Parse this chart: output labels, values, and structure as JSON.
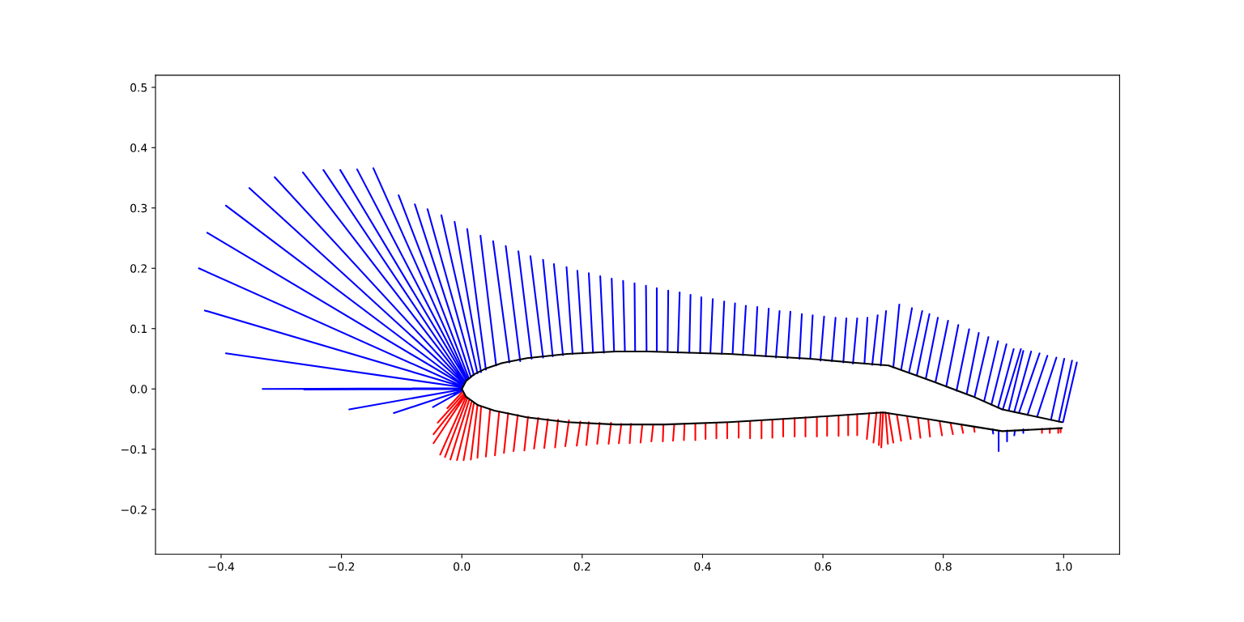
{
  "chart_data": {
    "type": "line",
    "xlim": [
      -0.509,
      1.093
    ],
    "ylim": [
      -0.274,
      0.52
    ],
    "xticks": [
      {
        "value": -0.4,
        "label": "−0.4"
      },
      {
        "value": -0.2,
        "label": "−0.2"
      },
      {
        "value": 0.0,
        "label": "0.0"
      },
      {
        "value": 0.2,
        "label": "0.2"
      },
      {
        "value": 0.4,
        "label": "0.4"
      },
      {
        "value": 0.6,
        "label": "0.6"
      },
      {
        "value": 0.8,
        "label": "0.8"
      },
      {
        "value": 1.0,
        "label": "1.0"
      }
    ],
    "yticks": [
      {
        "value": -0.2,
        "label": "−0.2"
      },
      {
        "value": -0.1,
        "label": "−0.1"
      },
      {
        "value": 0.0,
        "label": "0.0"
      },
      {
        "value": 0.1,
        "label": "0.1"
      },
      {
        "value": 0.2,
        "label": "0.2"
      },
      {
        "value": 0.3,
        "label": "0.3"
      },
      {
        "value": 0.4,
        "label": "0.4"
      },
      {
        "value": 0.5,
        "label": "0.5"
      }
    ],
    "grid": false,
    "series": [
      {
        "color": "#0000ff",
        "x": [
          -0.001,
          -0.048,
          null,
          -0.001,
          -0.113,
          null,
          -0.001,
          -0.187,
          null,
          -0.001,
          -0.262,
          null,
          -0.001,
          -0.331,
          null,
          0.0,
          -0.392,
          null,
          0.0,
          -0.427,
          null,
          0.0,
          -0.437,
          null,
          0.001,
          -0.423,
          null,
          0.001,
          -0.392,
          null,
          0.003,
          -0.353,
          null,
          0.003,
          -0.311,
          null,
          0.004,
          -0.264,
          null,
          0.005,
          -0.23,
          null,
          0.007,
          -0.202,
          null,
          0.008,
          -0.174,
          null,
          0.009,
          -0.147,
          null,
          0.011,
          -0.105,
          null,
          0.015,
          -0.078,
          null,
          0.02,
          -0.057,
          null,
          0.026,
          -0.034,
          null,
          0.032,
          -0.012,
          null,
          0.04,
          0.009,
          null,
          0.057,
          0.031,
          null,
          0.079,
          0.052,
          null,
          0.097,
          0.073,
          null,
          0.116,
          0.094,
          null,
          0.135,
          0.114,
          null,
          0.151,
          0.135,
          null,
          0.168,
          0.153,
          null,
          0.184,
          0.174,
          null,
          0.201,
          0.192,
          null,
          0.218,
          0.211,
          null,
          0.236,
          0.23,
          null,
          0.253,
          0.249,
          null,
          0.271,
          0.268,
          null,
          0.288,
          0.287,
          null,
          0.307,
          0.306,
          null,
          0.324,
          0.324,
          null,
          0.342,
          0.343,
          null,
          0.359,
          0.362,
          null,
          0.378,
          0.38,
          null,
          0.396,
          0.398,
          null,
          0.413,
          0.417,
          null,
          0.432,
          0.436,
          null,
          0.45,
          0.454,
          null,
          0.467,
          0.472,
          null,
          0.487,
          0.491,
          null,
          0.505,
          0.51,
          null,
          0.522,
          0.528,
          null,
          0.541,
          0.546,
          null,
          0.561,
          0.565,
          null,
          0.579,
          0.583,
          null,
          0.596,
          0.602,
          null,
          0.615,
          0.621,
          null,
          0.634,
          0.639,
          null,
          0.65,
          0.657,
          null,
          0.669,
          0.674,
          null,
          0.682,
          0.691,
          null,
          0.696,
          0.705,
          null,
          0.717,
          0.727,
          null,
          0.73,
          0.748,
          null,
          0.743,
          0.765,
          null,
          0.756,
          0.777,
          null,
          0.771,
          0.791,
          null,
          0.787,
          0.808,
          null,
          0.805,
          0.825,
          null,
          0.822,
          0.843,
          null,
          0.839,
          0.859,
          null,
          0.852,
          0.875,
          null,
          0.868,
          0.891,
          null,
          0.88,
          0.905,
          null,
          0.891,
          0.917,
          null,
          0.899,
          0.929,
          null,
          0.909,
          0.933,
          null,
          0.918,
          0.946,
          null,
          0.926,
          0.96,
          null,
          0.94,
          0.973,
          null,
          0.956,
          0.988,
          null,
          0.979,
          1.001,
          null,
          0.992,
          1.014,
          null,
          0.999,
          1.022,
          null,
          0.882,
          0.883,
          null,
          0.892,
          0.892,
          null,
          0.906,
          0.906,
          null,
          0.919,
          0.918,
          null,
          0.933,
          0.933
        ],
        "values": [
          -0.004,
          -0.03,
          null,
          -0.003,
          -0.04,
          null,
          -0.001,
          -0.034,
          null,
          0.0,
          -0.001,
          null,
          0.001,
          0.0,
          null,
          0.003,
          0.059,
          null,
          0.004,
          0.13,
          null,
          0.005,
          0.2,
          null,
          0.007,
          0.259,
          null,
          0.008,
          0.304,
          null,
          0.009,
          0.333,
          null,
          0.011,
          0.351,
          null,
          0.012,
          0.359,
          null,
          0.013,
          0.363,
          null,
          0.015,
          0.363,
          null,
          0.016,
          0.364,
          null,
          0.017,
          0.366,
          null,
          0.019,
          0.321,
          null,
          0.02,
          0.306,
          null,
          0.023,
          0.298,
          null,
          0.026,
          0.288,
          null,
          0.028,
          0.277,
          null,
          0.032,
          0.265,
          null,
          0.039,
          0.254,
          null,
          0.044,
          0.245,
          null,
          0.046,
          0.237,
          null,
          0.05,
          0.228,
          null,
          0.052,
          0.22,
          null,
          0.054,
          0.214,
          null,
          0.056,
          0.207,
          null,
          0.058,
          0.202,
          null,
          0.059,
          0.196,
          null,
          0.06,
          0.192,
          null,
          0.06,
          0.187,
          null,
          0.062,
          0.183,
          null,
          0.062,
          0.179,
          null,
          0.062,
          0.175,
          null,
          0.062,
          0.171,
          null,
          0.062,
          0.167,
          null,
          0.062,
          0.163,
          null,
          0.06,
          0.16,
          null,
          0.06,
          0.156,
          null,
          0.059,
          0.152,
          null,
          0.059,
          0.149,
          null,
          0.058,
          0.145,
          null,
          0.058,
          0.142,
          null,
          0.056,
          0.138,
          null,
          0.055,
          0.136,
          null,
          0.054,
          0.133,
          null,
          0.052,
          0.129,
          null,
          0.051,
          0.128,
          null,
          0.05,
          0.124,
          null,
          0.05,
          0.122,
          null,
          0.047,
          0.12,
          null,
          0.046,
          0.118,
          null,
          0.044,
          0.117,
          null,
          0.042,
          0.117,
          null,
          0.042,
          0.118,
          null,
          0.04,
          0.122,
          null,
          0.039,
          0.129,
          null,
          0.036,
          0.14,
          null,
          0.032,
          0.134,
          null,
          0.027,
          0.129,
          null,
          0.022,
          0.124,
          null,
          0.017,
          0.118,
          null,
          0.011,
          0.113,
          null,
          0.004,
          0.106,
          null,
          -0.003,
          0.099,
          null,
          -0.008,
          0.093,
          null,
          -0.013,
          0.086,
          null,
          -0.02,
          0.079,
          null,
          -0.026,
          0.074,
          null,
          -0.031,
          0.066,
          null,
          -0.034,
          0.066,
          null,
          -0.035,
          0.063,
          null,
          -0.038,
          0.062,
          null,
          -0.039,
          0.059,
          null,
          -0.043,
          0.055,
          null,
          -0.046,
          0.052,
          null,
          -0.051,
          0.05,
          null,
          -0.054,
          0.047,
          null,
          -0.055,
          0.044,
          null,
          -0.067,
          -0.074,
          null,
          -0.07,
          -0.103,
          null,
          -0.069,
          -0.087,
          null,
          -0.069,
          -0.077,
          null,
          -0.067,
          -0.073
        ]
      },
      {
        "color": "#ff0000",
        "x": [
          0.001,
          -0.024,
          null,
          0.003,
          -0.04,
          null,
          0.004,
          -0.047,
          null,
          0.005,
          -0.047,
          null,
          0.007,
          -0.036,
          null,
          0.009,
          -0.028,
          null,
          0.012,
          -0.019,
          null,
          0.016,
          -0.008,
          null,
          0.02,
          0.003,
          null,
          0.026,
          0.015,
          null,
          0.032,
          0.026,
          null,
          0.047,
          0.04,
          null,
          0.062,
          0.055,
          null,
          0.077,
          0.07,
          null,
          0.093,
          0.086,
          null,
          0.11,
          0.104,
          null,
          0.127,
          0.12,
          null,
          0.143,
          0.137,
          null,
          0.16,
          0.155,
          null,
          0.178,
          0.172,
          null,
          0.197,
          0.191,
          null,
          0.211,
          0.207,
          null,
          0.229,
          0.225,
          null,
          0.248,
          0.244,
          null,
          0.265,
          0.261,
          null,
          0.281,
          0.279,
          null,
          0.3,
          0.297,
          null,
          0.318,
          0.315,
          null,
          0.335,
          0.334,
          null,
          0.353,
          0.351,
          null,
          0.37,
          0.369,
          null,
          0.388,
          0.388,
          null,
          0.405,
          0.405,
          null,
          0.423,
          0.423,
          null,
          0.441,
          0.441,
          null,
          0.46,
          0.46,
          null,
          0.479,
          0.479,
          null,
          0.498,
          0.498,
          null,
          0.516,
          0.516,
          null,
          0.534,
          0.534,
          null,
          0.553,
          0.553,
          null,
          0.571,
          0.571,
          null,
          0.59,
          0.59,
          null,
          0.607,
          0.607,
          null,
          0.626,
          0.626,
          null,
          0.642,
          0.642,
          null,
          0.657,
          0.657,
          null,
          0.677,
          0.673,
          null,
          0.689,
          0.684,
          null,
          0.696,
          0.693,
          null,
          0.7,
          0.697,
          null,
          0.704,
          0.708,
          null,
          0.709,
          0.717,
          null,
          0.723,
          0.73,
          null,
          0.74,
          0.746,
          null,
          0.758,
          0.762,
          null,
          0.775,
          0.778,
          null,
          0.794,
          0.798,
          null,
          0.812,
          0.816,
          null,
          0.83,
          0.833,
          null,
          0.851,
          0.852,
          null,
          0.964,
          0.964,
          null,
          0.977,
          0.977,
          null,
          0.991,
          0.991,
          null,
          0.995,
          0.995
        ],
        "values": [
          -0.005,
          -0.032,
          null,
          -0.008,
          -0.056,
          null,
          -0.011,
          -0.075,
          null,
          -0.012,
          -0.09,
          null,
          -0.013,
          -0.109,
          null,
          -0.016,
          -0.113,
          null,
          -0.019,
          -0.117,
          null,
          -0.022,
          -0.118,
          null,
          -0.024,
          -0.118,
          null,
          -0.027,
          -0.117,
          null,
          -0.03,
          -0.114,
          null,
          -0.034,
          -0.112,
          null,
          -0.038,
          -0.11,
          null,
          -0.04,
          -0.106,
          null,
          -0.043,
          -0.103,
          null,
          -0.046,
          -0.102,
          null,
          -0.048,
          -0.099,
          null,
          -0.05,
          -0.098,
          null,
          -0.051,
          -0.097,
          null,
          -0.052,
          -0.095,
          null,
          -0.054,
          -0.094,
          null,
          -0.055,
          -0.093,
          null,
          -0.056,
          -0.091,
          null,
          -0.056,
          -0.091,
          null,
          -0.058,
          -0.09,
          null,
          -0.058,
          -0.09,
          null,
          -0.059,
          -0.089,
          null,
          -0.059,
          -0.087,
          null,
          -0.059,
          -0.087,
          null,
          -0.059,
          -0.086,
          null,
          -0.059,
          -0.085,
          null,
          -0.059,
          -0.085,
          null,
          -0.058,
          -0.083,
          null,
          -0.058,
          -0.082,
          null,
          -0.056,
          -0.082,
          null,
          -0.056,
          -0.081,
          null,
          -0.054,
          -0.082,
          null,
          -0.052,
          -0.082,
          null,
          -0.051,
          -0.081,
          null,
          -0.05,
          -0.079,
          null,
          -0.048,
          -0.079,
          null,
          -0.047,
          -0.079,
          null,
          -0.047,
          -0.079,
          null,
          -0.046,
          -0.078,
          null,
          -0.044,
          -0.078,
          null,
          -0.043,
          -0.077,
          null,
          -0.042,
          -0.077,
          null,
          -0.04,
          -0.083,
          null,
          -0.039,
          -0.089,
          null,
          -0.039,
          -0.093,
          null,
          -0.039,
          -0.097,
          null,
          -0.039,
          -0.091,
          null,
          -0.04,
          -0.089,
          null,
          -0.043,
          -0.086,
          null,
          -0.046,
          -0.083,
          null,
          -0.048,
          -0.081,
          null,
          -0.051,
          -0.079,
          null,
          -0.054,
          -0.077,
          null,
          -0.056,
          -0.075,
          null,
          -0.059,
          -0.073,
          null,
          -0.063,
          -0.071,
          null,
          -0.066,
          -0.073,
          null,
          -0.066,
          -0.073,
          null,
          -0.065,
          -0.073,
          null,
          -0.066,
          -0.072
        ]
      },
      {
        "color": "#000000",
        "x": [
          0.0,
          0.007,
          0.02,
          0.04,
          0.067,
          0.108,
          0.175,
          0.256,
          0.31,
          0.377,
          0.444,
          0.511,
          0.579,
          0.646,
          0.709,
          0.781,
          0.848,
          0.898,
          0.997
        ],
        "values": [
          0.0,
          0.013,
          0.024,
          0.034,
          0.043,
          0.051,
          0.058,
          0.062,
          0.062,
          0.06,
          0.058,
          0.054,
          0.05,
          0.044,
          0.039,
          0.013,
          -0.012,
          -0.034,
          -0.055
        ]
      },
      {
        "color": "#000000",
        "x": [
          0.0,
          0.007,
          0.027,
          0.054,
          0.108,
          0.175,
          0.256,
          0.337,
          0.444,
          0.579,
          0.7,
          0.781,
          0.848,
          0.898,
          0.997
        ],
        "values": [
          0.0,
          -0.013,
          -0.027,
          -0.036,
          -0.047,
          -0.055,
          -0.059,
          -0.059,
          -0.055,
          -0.047,
          -0.039,
          -0.051,
          -0.062,
          -0.07,
          -0.065
        ]
      }
    ]
  }
}
